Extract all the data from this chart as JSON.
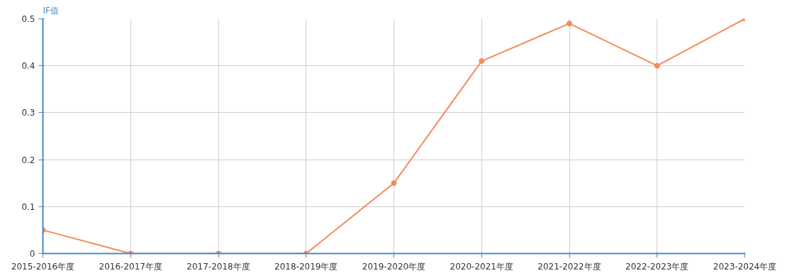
{
  "chart_data": {
    "type": "line",
    "ylabel": "IF值",
    "categories": [
      "2015-2016年度",
      "2016-2017年度",
      "2017-2018年度",
      "2018-2019年度",
      "2019-2020年度",
      "2020-2021年度",
      "2021-2022年度",
      "2022-2023年度",
      "2023-2024年度"
    ],
    "series": [
      {
        "color": "#f58a5a",
        "values": [
          0.05,
          0,
          0,
          0,
          0.15,
          0.41,
          0.49,
          0.4,
          0.5
        ]
      }
    ],
    "ylim": [
      0,
      0.5
    ],
    "yticks": [
      0,
      0.1,
      0.2,
      0.3,
      0.4,
      0.5
    ],
    "grid": true,
    "marker": "circle",
    "line_style": "solid"
  }
}
